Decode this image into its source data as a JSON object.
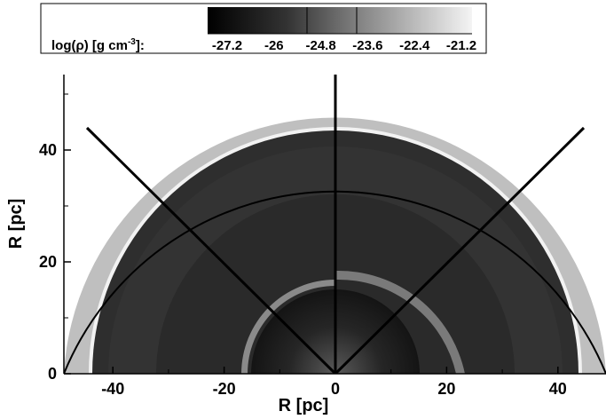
{
  "colorbar": {
    "label_prefix": "log(ρ) [g cm",
    "label_exponent": "-3",
    "label_suffix": "]:",
    "ticks": [
      "-27.2",
      "-26",
      "-24.8",
      "-23.6",
      "-22.4",
      "-21.2"
    ],
    "range": [
      -27.2,
      -21.2
    ]
  },
  "axes": {
    "xlabel": "R [pc]",
    "ylabel": "R [pc]",
    "xticks": [
      "-40",
      "-20",
      "0",
      "20",
      "40"
    ],
    "yticks": [
      "0",
      "20",
      "40"
    ],
    "xlim": [
      -50,
      50
    ],
    "ylim": [
      0,
      55
    ]
  },
  "colors": {
    "ambient": "#bfbfbf",
    "bubble": "#2e2e2e",
    "shell_outline": "#ffffff",
    "sector_line": "#000000"
  }
}
